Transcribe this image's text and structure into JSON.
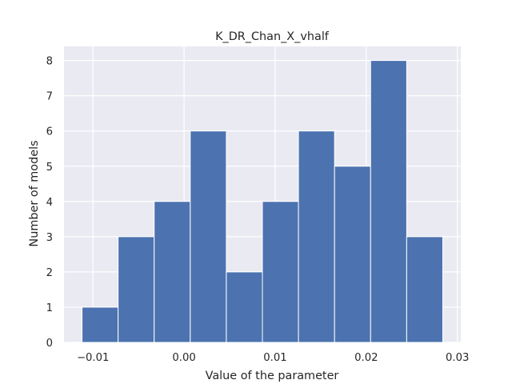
{
  "chart_data": {
    "type": "bar",
    "title": "K_DR_Chan_X_vhalf",
    "xlabel": "Value of the parameter",
    "ylabel": "Number of models",
    "bin_edges": [
      -0.0112,
      -0.00724,
      -0.00328,
      0.00068,
      0.00464,
      0.0086,
      0.01256,
      0.01652,
      0.02048,
      0.02444,
      0.0284
    ],
    "values": [
      1,
      3,
      4,
      6,
      2,
      4,
      6,
      5,
      8,
      3
    ],
    "xlim": [
      -0.01318,
      0.03038
    ],
    "ylim": [
      0,
      8.4
    ],
    "xticks": [
      -0.01,
      0.0,
      0.01,
      0.02,
      0.03
    ],
    "xtick_labels": [
      "−0.01",
      "0.00",
      "0.01",
      "0.02",
      "0.03"
    ],
    "yticks": [
      0,
      1,
      2,
      3,
      4,
      5,
      6,
      7,
      8
    ],
    "ytick_labels": [
      "0",
      "1",
      "2",
      "3",
      "4",
      "5",
      "6",
      "7",
      "8"
    ],
    "grid": true,
    "colors": {
      "background": "#eaeaf2",
      "bar": "#4c72b0",
      "bar_edge": "#ffffff",
      "grid": "#ffffff",
      "text": "#262626"
    }
  }
}
